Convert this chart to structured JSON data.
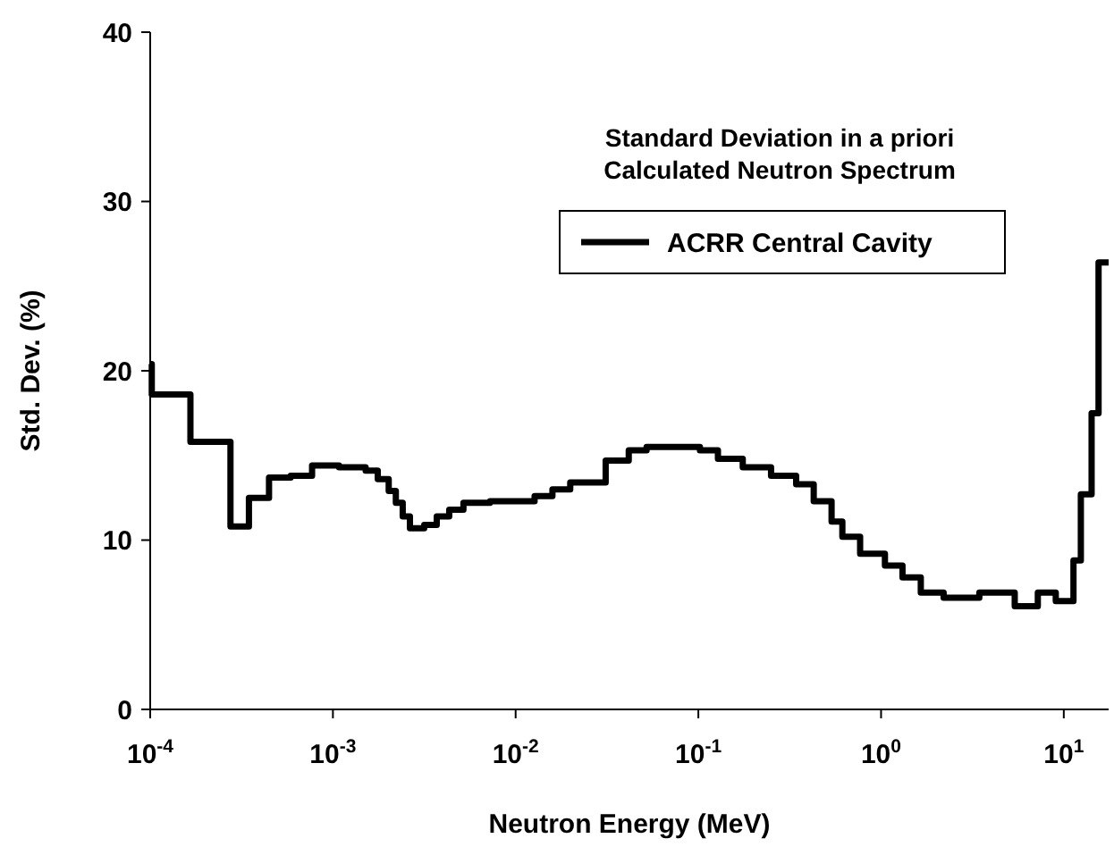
{
  "chart_data": {
    "type": "step",
    "title": "Standard Deviation in a priori\nCalculated Neutron Spectrum",
    "xlabel": "Neutron Energy (MeV)",
    "ylabel": "Std. Dev. (%)",
    "x": [
      0.0001,
      0.000102,
      0.000166,
      0.000275,
      0.000347,
      0.000447,
      0.000587,
      0.000769,
      0.00108,
      0.00151,
      0.00176,
      0.00202,
      0.00221,
      0.00241,
      0.00264,
      0.00316,
      0.0037,
      0.00433,
      0.00518,
      0.00724,
      0.0101,
      0.0127,
      0.0159,
      0.0199,
      0.0311,
      0.0416,
      0.0521,
      0.102,
      0.128,
      0.175,
      0.25,
      0.343,
      0.428,
      0.536,
      0.614,
      0.768,
      1.05,
      1.31,
      1.65,
      2.2,
      3.45,
      5.39,
      7.21,
      9.04,
      11.3,
      12.4,
      14.2,
      15.5,
      17.6
    ],
    "series": [
      {
        "name": "ACRR Central Cavity",
        "color": "#000000",
        "values": [
          20.4,
          18.6,
          15.8,
          10.8,
          12.5,
          13.7,
          13.8,
          14.4,
          14.3,
          14.1,
          13.6,
          12.9,
          12.2,
          11.4,
          10.7,
          10.9,
          11.4,
          11.8,
          12.2,
          12.3,
          12.3,
          12.6,
          13.0,
          13.4,
          14.7,
          15.3,
          15.5,
          15.3,
          14.8,
          14.3,
          13.8,
          13.3,
          12.3,
          11.1,
          10.2,
          9.2,
          8.5,
          7.8,
          6.9,
          6.6,
          6.9,
          6.1,
          6.9,
          6.4,
          8.8,
          12.7,
          17.5,
          26.4,
          26.4
        ]
      }
    ],
    "log": "x",
    "xlim": [
      0.0001,
      17.6
    ],
    "ylim": [
      0,
      40
    ],
    "xticks": [
      {
        "value": 0.0001,
        "label": "10$^{-4}$"
      },
      {
        "value": 0.001,
        "label": "10$^{-3}$"
      },
      {
        "value": 0.01,
        "label": "10$^{-2}$"
      },
      {
        "value": 0.1,
        "label": "10$^{-1}$"
      },
      {
        "value": 1,
        "label": "10$^{0}$"
      },
      {
        "value": 10,
        "label": "10$^{1}$"
      }
    ],
    "yticks": [
      0,
      10,
      20,
      30,
      40
    ],
    "grid": false,
    "legend": "top right",
    "line_style": "solid",
    "marker": "none"
  }
}
